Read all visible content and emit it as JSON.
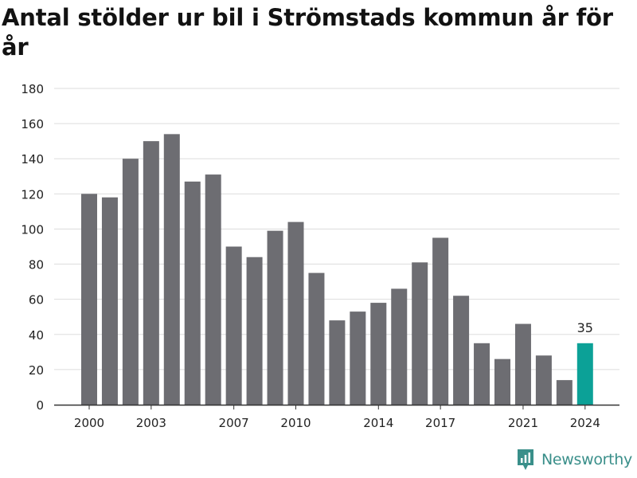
{
  "title": "Antal stölder ur bil i Strömstads kommun år för år",
  "brand": {
    "name": "Newsworthy",
    "icon": "newsworthy-logo-icon",
    "color": "#3a8f8a"
  },
  "chart_data": {
    "type": "bar",
    "title": "Antal stölder ur bil i Strömstads kommun år för år",
    "categories": [
      "2000",
      "2001",
      "2002",
      "2003",
      "2004",
      "2005",
      "2006",
      "2007",
      "2008",
      "2009",
      "2010",
      "2011",
      "2012",
      "2013",
      "2014",
      "2015",
      "2016",
      "2017",
      "2018",
      "2019",
      "2020",
      "2021",
      "2022",
      "2023",
      "2024"
    ],
    "values": [
      120,
      118,
      140,
      150,
      154,
      127,
      131,
      90,
      84,
      99,
      104,
      75,
      48,
      53,
      58,
      66,
      81,
      95,
      62,
      35,
      26,
      46,
      28,
      14,
      35
    ],
    "x_tick_labels": [
      "2000",
      "2003",
      "2007",
      "2010",
      "2014",
      "2017",
      "2021",
      "2024"
    ],
    "y_ticks": [
      0,
      20,
      40,
      60,
      80,
      100,
      120,
      140,
      160,
      180
    ],
    "ylim": [
      0,
      180
    ],
    "xlabel": "",
    "ylabel": "",
    "grid": true,
    "highlight": {
      "category": "2024",
      "label": "35"
    },
    "colors": {
      "bar": "#6d6d72",
      "highlight": "#0ca197",
      "grid": "#dddddd",
      "axis": "#333333"
    }
  }
}
